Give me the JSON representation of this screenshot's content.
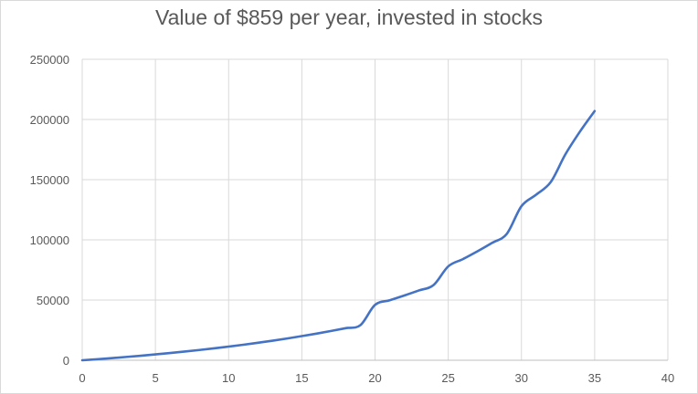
{
  "chart_data": {
    "type": "line",
    "title": "Value of $859 per year, invested in stocks",
    "xlabel": "",
    "ylabel": "",
    "xlim": [
      0,
      40
    ],
    "ylim": [
      0,
      250000
    ],
    "x_ticks": [
      "0",
      "5",
      "10",
      "15",
      "20",
      "25",
      "30",
      "35",
      "40"
    ],
    "y_ticks": [
      "0",
      "50000",
      "100000",
      "150000",
      "200000",
      "250000"
    ],
    "grid": true,
    "legend": "none",
    "series": [
      {
        "color": "#4472c4",
        "x": [
          0,
          1,
          2,
          3,
          4,
          5,
          6,
          7,
          8,
          9,
          10,
          11,
          12,
          13,
          14,
          15,
          16,
          17,
          18,
          19,
          20,
          21,
          22,
          23,
          24,
          25,
          26,
          27,
          28,
          29,
          30,
          31,
          32,
          33,
          34,
          35
        ],
        "y": [
          0,
          859,
          1770,
          2735,
          3760,
          4845,
          6000,
          7220,
          8520,
          9890,
          11350,
          12890,
          14520,
          16260,
          18100,
          20060,
          22130,
          24330,
          26670,
          29150,
          46000,
          49800,
          53800,
          58000,
          62500,
          78000,
          84000,
          90500,
          97500,
          105000,
          128000,
          137500,
          148000,
          171000,
          190000,
          207000
        ]
      }
    ]
  }
}
